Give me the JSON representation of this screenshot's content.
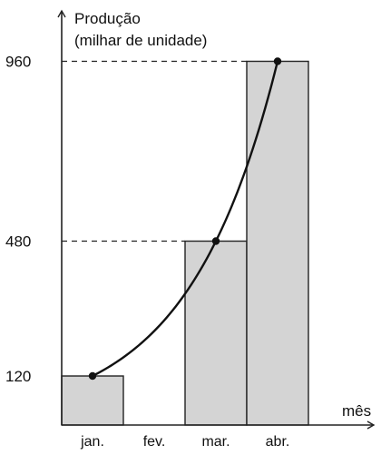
{
  "chart_data": {
    "type": "bar",
    "ylabel_line1": "Produção",
    "ylabel_line2": "(milhar de unidade)",
    "xlabel": "mês",
    "categories": [
      "jan.",
      "fev.",
      "mar.",
      "abr."
    ],
    "values": [
      120,
      null,
      480,
      960
    ],
    "yticks": [
      120,
      480,
      960
    ],
    "ylim": [
      0,
      1060
    ],
    "curve": {
      "type": "exponential",
      "points": [
        {
          "x": "jan.",
          "y": 120
        },
        {
          "x": "mar.",
          "y": 480
        },
        {
          "x": "abr.",
          "y": 960
        }
      ]
    },
    "dashed_reference_lines": [
      480,
      960
    ],
    "colors": {
      "bar_fill": "#d4d4d4",
      "bar_stroke": "#222222",
      "axis": "#222222",
      "curve": "#111111"
    }
  }
}
